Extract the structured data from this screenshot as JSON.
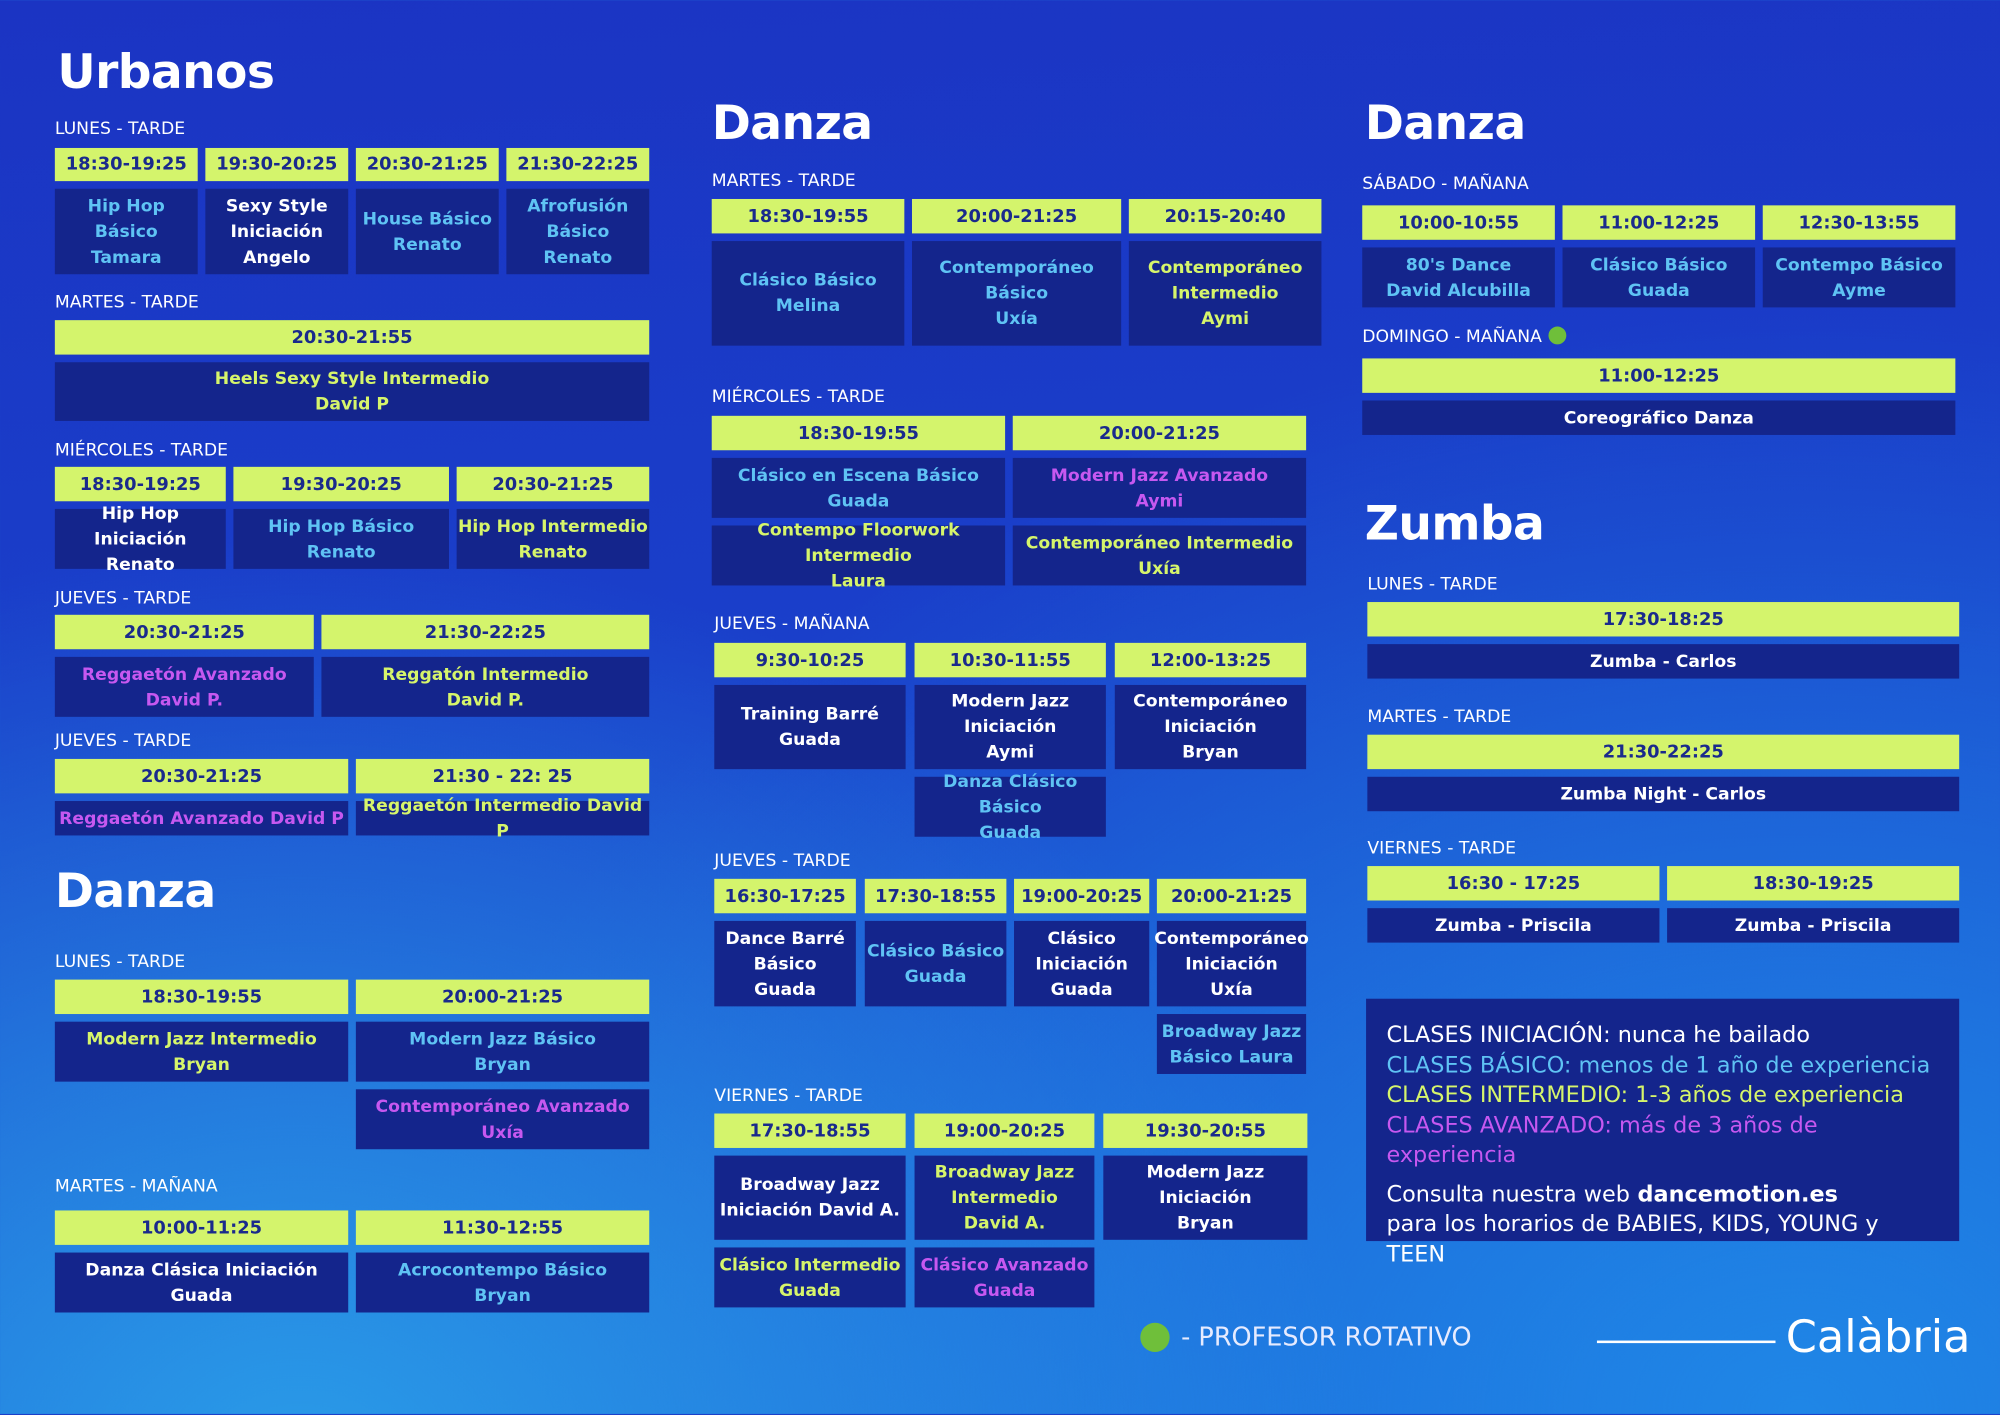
{
  "sections": [
    {
      "title": "Urbanos",
      "blocks": [
        {
          "day": "LUNES - TARDE",
          "times": [
            "18:30-19:25",
            "19:30-20:25",
            "20:30-21:25",
            "21:30-22:25"
          ],
          "classes": [
            {
              "lines": [
                "Hip Hop Básico",
                "Tamara"
              ],
              "color": "#5fc3f4"
            },
            {
              "lines": [
                "Sexy Style",
                "Iniciación",
                "Angelo"
              ],
              "color": "#ffffff"
            },
            {
              "lines": [
                "House Básico",
                "Renato"
              ],
              "color": "#5fc3f4"
            },
            {
              "lines": [
                "Afrofusión",
                "Básico",
                "Renato"
              ],
              "color": "#5fc3f4"
            }
          ]
        },
        {
          "day": "MARTES - TARDE",
          "times": [
            "20:30-21:55"
          ],
          "classes": [
            {
              "lines": [
                "Heels Sexy Style Intermedio",
                "David P"
              ],
              "color": "#d6f56b"
            }
          ]
        },
        {
          "day": "MIÉRCOLES - TARDE",
          "times": [
            "18:30-19:25",
            "19:30-20:25",
            "20:30-21:25"
          ],
          "classes": [
            {
              "lines": [
                "Hip Hop Iniciación",
                "Renato"
              ],
              "color": "#ffffff"
            },
            {
              "lines": [
                "Hip Hop Básico",
                "Renato"
              ],
              "color": "#5fc3f4"
            },
            {
              "lines": [
                "Hip Hop Intermedio",
                "Renato"
              ],
              "color": "#d6f56b"
            }
          ]
        },
        {
          "day": "JUEVES - TARDE",
          "times": [
            "20:30-21:25",
            "21:30-22:25"
          ],
          "classes": [
            {
              "lines": [
                "Reggaetón Avanzado",
                "David P."
              ],
              "color": "#c658f0"
            },
            {
              "lines": [
                "Reggatón Intermedio",
                "David P."
              ],
              "color": "#d6f56b"
            }
          ]
        },
        {
          "day": "JUEVES - TARDE",
          "times": [
            "20:30-21:25",
            "21:30 - 22: 25"
          ],
          "classes": [
            {
              "lines": [
                "Reggaetón Avanzado David P"
              ],
              "color": "#c658f0"
            },
            {
              "lines": [
                "Reggaetón Intermedio David P"
              ],
              "color": "#d6f56b"
            }
          ]
        }
      ]
    },
    {
      "title": "Danza",
      "blocks": [
        {
          "day": "LUNES - TARDE",
          "times": [
            "18:30-19:55",
            "20:00-21:25"
          ],
          "classes": [
            {
              "lines": [
                "Modern Jazz Intermedio",
                "Bryan"
              ],
              "color": "#d6f56b"
            },
            {
              "lines": [
                "Modern Jazz Básico",
                "Bryan"
              ],
              "color": "#5fc3f4"
            },
            {
              "lines": [
                "Contemporáneo Avanzado",
                "Uxía"
              ],
              "color": "#c658f0"
            }
          ]
        },
        {
          "day": "MARTES - MAÑANA",
          "times": [
            "10:00-11:25",
            "11:30-12:55"
          ],
          "classes": [
            {
              "lines": [
                "Danza Clásica Iniciación",
                "Guada"
              ],
              "color": "#ffffff"
            },
            {
              "lines": [
                "Acrocontempo Básico",
                "Bryan"
              ],
              "color": "#5fc3f4"
            }
          ]
        }
      ]
    },
    {
      "title": "Danza",
      "blocks": [
        {
          "day": "MARTES - TARDE",
          "times": [
            "18:30-19:55",
            "20:00-21:25",
            "20:15-20:40"
          ],
          "classes": [
            {
              "lines": [
                "Clásico Básico",
                "Melina"
              ],
              "color": "#5fc3f4"
            },
            {
              "lines": [
                "Contemporáneo Básico",
                "Uxía"
              ],
              "color": "#5fc3f4"
            },
            {
              "lines": [
                "Contemporáneo",
                "Intermedio",
                "Aymi"
              ],
              "color": "#d6f56b"
            }
          ]
        },
        {
          "day": "MIÉRCOLES - TARDE",
          "times": [
            "18:30-19:55",
            "20:00-21:25"
          ],
          "classes": [
            {
              "lines": [
                "Clásico en Escena Básico",
                "Guada"
              ],
              "color": "#5fc3f4"
            },
            {
              "lines": [
                "Modern Jazz Avanzado",
                "Aymi"
              ],
              "color": "#c658f0"
            },
            {
              "lines": [
                "Contempo Floorwork Intermedio",
                "Laura"
              ],
              "color": "#d6f56b"
            },
            {
              "lines": [
                "Contemporáneo Intermedio",
                "Uxía"
              ],
              "color": "#d6f56b"
            }
          ]
        },
        {
          "day": "JUEVES - MAÑANA",
          "times": [
            "9:30-10:25",
            "10:30-11:55",
            "12:00-13:25"
          ],
          "classes": [
            {
              "lines": [
                "Training Barré",
                "Guada"
              ],
              "color": "#ffffff"
            },
            {
              "lines": [
                "Modern Jazz",
                "Iniciación",
                "Aymi"
              ],
              "color": "#ffffff"
            },
            {
              "lines": [
                "Contemporáneo",
                "Iniciación",
                "Bryan"
              ],
              "color": "#ffffff"
            },
            {
              "lines": [
                "Danza Clásico Básico",
                "Guada"
              ],
              "color": "#5fc3f4"
            }
          ]
        },
        {
          "day": "JUEVES - TARDE",
          "times": [
            "16:30-17:25",
            "17:30-18:55",
            "19:00-20:25",
            "20:00-21:25"
          ],
          "classes": [
            {
              "lines": [
                "Dance Barré",
                "Básico",
                "Guada"
              ],
              "color": "#ffffff"
            },
            {
              "lines": [
                "Clásico Básico",
                "Guada"
              ],
              "color": "#5fc3f4"
            },
            {
              "lines": [
                "Clásico",
                "Iniciación",
                "Guada"
              ],
              "color": "#ffffff"
            },
            {
              "lines": [
                "Contemporáneo",
                "Iniciación",
                "Uxía"
              ],
              "color": "#ffffff"
            },
            {
              "lines": [
                "Broadway Jazz",
                "Básico Laura"
              ],
              "color": "#5fc3f4"
            }
          ]
        },
        {
          "day": "VIERNES - TARDE",
          "times": [
            "17:30-18:55",
            "19:00-20:25",
            "19:30-20:55"
          ],
          "classes": [
            {
              "lines": [
                "Broadway Jazz",
                "Iniciación David A."
              ],
              "color": "#ffffff"
            },
            {
              "lines": [
                "Broadway Jazz",
                "Intermedio",
                "David A."
              ],
              "color": "#d6f56b"
            },
            {
              "lines": [
                "Modern Jazz Iniciación",
                "Bryan"
              ],
              "color": "#ffffff"
            },
            {
              "lines": [
                "Clásico Intermedio",
                "Guada"
              ],
              "color": "#d6f56b"
            },
            {
              "lines": [
                "Clásico Avanzado",
                "Guada"
              ],
              "color": "#c658f0"
            }
          ]
        }
      ]
    },
    {
      "title": "Danza",
      "blocks": [
        {
          "day": "SÁBADO - MAÑANA",
          "times": [
            "10:00-10:55",
            "11:00-12:25",
            "12:30-13:55"
          ],
          "classes": [
            {
              "lines": [
                "80's Dance",
                "David Alcubilla"
              ],
              "color": "#5fc3f4"
            },
            {
              "lines": [
                "Clásico Básico",
                "Guada"
              ],
              "color": "#5fc3f4"
            },
            {
              "lines": [
                "Contempo Básico",
                "Ayme"
              ],
              "color": "#5fc3f4"
            }
          ]
        },
        {
          "day": "DOMINGO - MAÑANA",
          "times": [
            "11:00-12:25"
          ],
          "classes": [
            {
              "lines": [
                "Coreográfico Danza"
              ],
              "color": "#ffffff"
            }
          ]
        }
      ]
    },
    {
      "title": "Zumba",
      "blocks": [
        {
          "day": "LUNES - TARDE",
          "times": [
            "17:30-18:25"
          ],
          "classes": [
            {
              "lines": [
                "Zumba - Carlos"
              ],
              "color": "#ffffff"
            }
          ]
        },
        {
          "day": "MARTES - TARDE",
          "times": [
            "21:30-22:25"
          ],
          "classes": [
            {
              "lines": [
                "Zumba Night - Carlos"
              ],
              "color": "#ffffff"
            }
          ]
        },
        {
          "day": "VIERNES - TARDE",
          "times": [
            "16:30 - 17:25",
            "18:30-19:25"
          ],
          "classes": [
            {
              "lines": [
                "Zumba - Priscila"
              ],
              "color": "#ffffff"
            },
            {
              "lines": [
                "Zumba - Priscila"
              ],
              "color": "#ffffff"
            }
          ]
        }
      ]
    }
  ],
  "legend": {
    "levels": [
      {
        "text": "CLASES INICIACIÓN: nunca he bailado",
        "color": "#ffffff"
      },
      {
        "text": "CLASES BÁSICO: menos de 1 año de experiencia",
        "color": "#5fc3f4"
      },
      {
        "text": "CLASES INTERMEDIO: 1-3 años de experiencia",
        "color": "#d6f56b"
      },
      {
        "text": "CLASES AVANZADO: más de 3 años de experiencia",
        "color": "#c658f0"
      }
    ],
    "note": {
      "intro": "Consulta nuestra web",
      "web": "dancemotion.es",
      "rest": "para los horarios de BABIES, KIDS, YOUNG y TEEN"
    }
  },
  "footer": {
    "note": "- PROFESOR ROTATIVO",
    "brand": "Calàbria"
  }
}
